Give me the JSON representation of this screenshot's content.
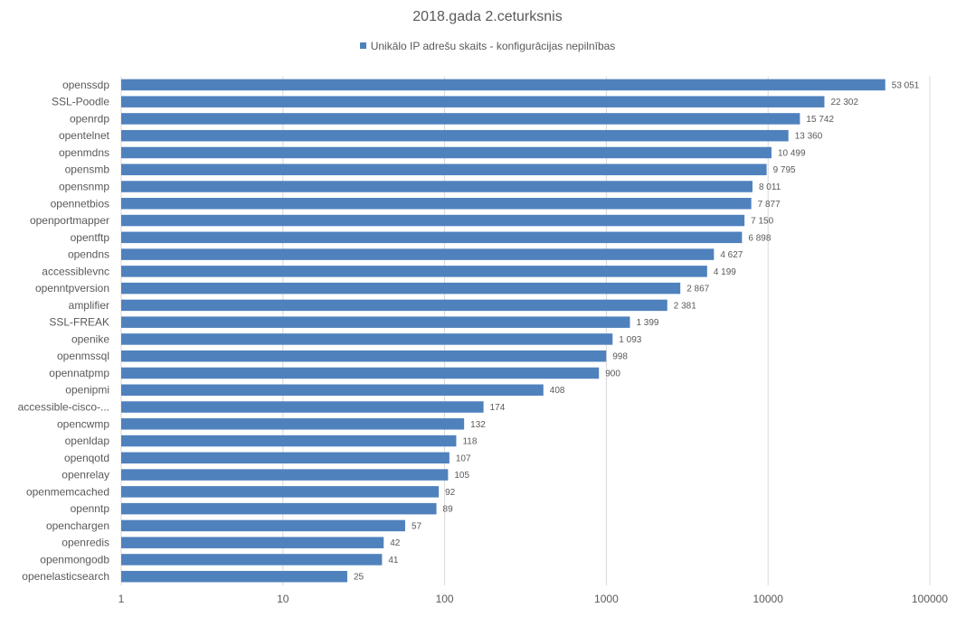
{
  "chart_data": {
    "type": "bar",
    "orientation": "horizontal",
    "title": "2018.gada 2.ceturksnis",
    "xscale": "log",
    "xlim": [
      1,
      100000
    ],
    "xticks": [
      1,
      10,
      100,
      1000,
      10000,
      100000
    ],
    "xtick_labels": [
      "1",
      "10",
      "100",
      "1000",
      "10000",
      "100000"
    ],
    "grid": true,
    "legend_position": "top",
    "categories": [
      "openssdp",
      "SSL-Poodle",
      "openrdp",
      "opentelnet",
      "openmdns",
      "opensmb",
      "opensnmp",
      "opennetbios",
      "openportmapper",
      "opentftp",
      "opendns",
      "accessiblevnc",
      "openntpversion",
      "amplifier",
      "SSL-FREAK",
      "openike",
      "openmssql",
      "opennatpmp",
      "openipmi",
      "accessible-cisco-...",
      "opencwmp",
      "openldap",
      "openqotd",
      "openrelay",
      "openmemcached",
      "openntp",
      "openchargen",
      "openredis",
      "openmongodb",
      "openelasticsearch"
    ],
    "series": [
      {
        "name": "Unikālo IP adrešu skaits  -  konfigurācijas nepilnības",
        "color": "#4f81bd",
        "values": [
          53051,
          22302,
          15742,
          13360,
          10499,
          9795,
          8011,
          7877,
          7150,
          6898,
          4627,
          4199,
          2867,
          2381,
          1399,
          1093,
          998,
          900,
          408,
          174,
          132,
          118,
          107,
          105,
          92,
          89,
          57,
          42,
          41,
          25
        ],
        "value_labels": [
          "53 051",
          "22 302",
          "15 742",
          "13 360",
          "10 499",
          "9 795",
          "8 011",
          "7 877",
          "7 150",
          "6 898",
          "4 627",
          "4 199",
          "2 867",
          "2 381",
          "1 399",
          "1 093",
          "998",
          "900",
          "408",
          "174",
          "132",
          "118",
          "107",
          "105",
          "92",
          "89",
          "57",
          "42",
          "41",
          "25"
        ]
      }
    ]
  }
}
